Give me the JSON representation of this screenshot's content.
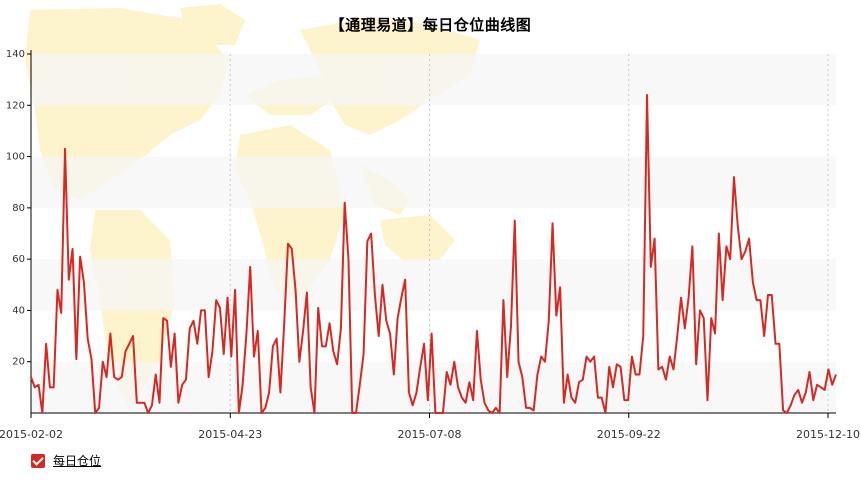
{
  "colors": {
    "series_line": "#d42a23",
    "axis": "#000000",
    "band": "#f6f6f6",
    "map": "#fdf1c4",
    "vgrid": "#c8c8c8"
  },
  "legend": {
    "checked": true,
    "icon": "checkbox-check-icon"
  },
  "chart_data": {
    "type": "line",
    "title": "【通理易道】每日仓位曲线图",
    "xlabel": "",
    "ylabel": "",
    "ylim": [
      0,
      140
    ],
    "yticks": [
      20,
      40,
      60,
      80,
      100,
      120,
      140
    ],
    "ytick_labels": [
      "20",
      "40",
      "60",
      "80",
      "100",
      "120",
      "140"
    ],
    "xticks": [
      "2015-02-02",
      "2015-04-23",
      "2015-07-08",
      "2015-09-22",
      "2015-12-10"
    ],
    "grid": "alternating horizontal bands, dashed vertical lines at date ticks",
    "legend_position": "bottom-left",
    "series": [
      {
        "name": "每日仓位",
        "values": [
          14,
          10,
          11,
          0,
          27,
          10,
          10,
          48,
          39,
          103,
          52,
          64,
          21,
          61,
          51,
          29,
          21,
          0,
          2,
          20,
          14,
          31,
          14,
          13,
          14,
          24,
          27,
          30,
          4,
          4,
          4,
          0,
          3,
          15,
          4,
          37,
          36,
          18,
          31,
          4,
          11,
          13,
          33,
          36,
          27,
          40,
          40,
          14,
          24,
          44,
          41,
          23,
          45,
          22,
          48,
          0,
          11,
          31,
          57,
          22,
          32,
          0,
          2,
          8,
          26,
          29,
          8,
          35,
          66,
          64,
          48,
          20,
          32,
          47,
          10,
          0,
          41,
          26,
          26,
          35,
          24,
          19,
          33,
          82,
          60,
          0,
          0,
          11,
          23,
          67,
          70,
          46,
          30,
          50,
          36,
          31,
          15,
          37,
          45,
          52,
          8,
          3,
          8,
          18,
          27,
          5,
          31,
          0,
          0,
          0,
          16,
          11,
          20,
          10,
          6,
          4,
          12,
          5,
          32,
          13,
          4,
          1,
          0,
          2,
          0,
          44,
          14,
          34,
          75,
          20,
          14,
          2,
          2,
          1,
          15,
          22,
          20,
          36,
          74,
          38,
          49,
          4,
          15,
          6,
          4,
          12,
          13,
          22,
          20,
          22,
          6,
          6,
          0,
          18,
          10,
          19,
          18,
          5,
          5,
          22,
          15,
          15,
          30,
          124,
          57,
          68,
          17,
          18,
          13,
          22,
          17,
          30,
          45,
          33,
          45,
          65,
          19,
          40,
          37,
          5,
          37,
          31,
          70,
          44,
          65,
          60,
          92,
          73,
          60,
          63,
          68,
          51,
          44,
          44,
          30,
          46,
          46,
          27,
          27,
          1,
          0,
          3,
          7,
          9,
          4,
          8,
          16,
          5,
          11,
          10,
          9,
          17,
          11,
          15
        ]
      }
    ]
  }
}
